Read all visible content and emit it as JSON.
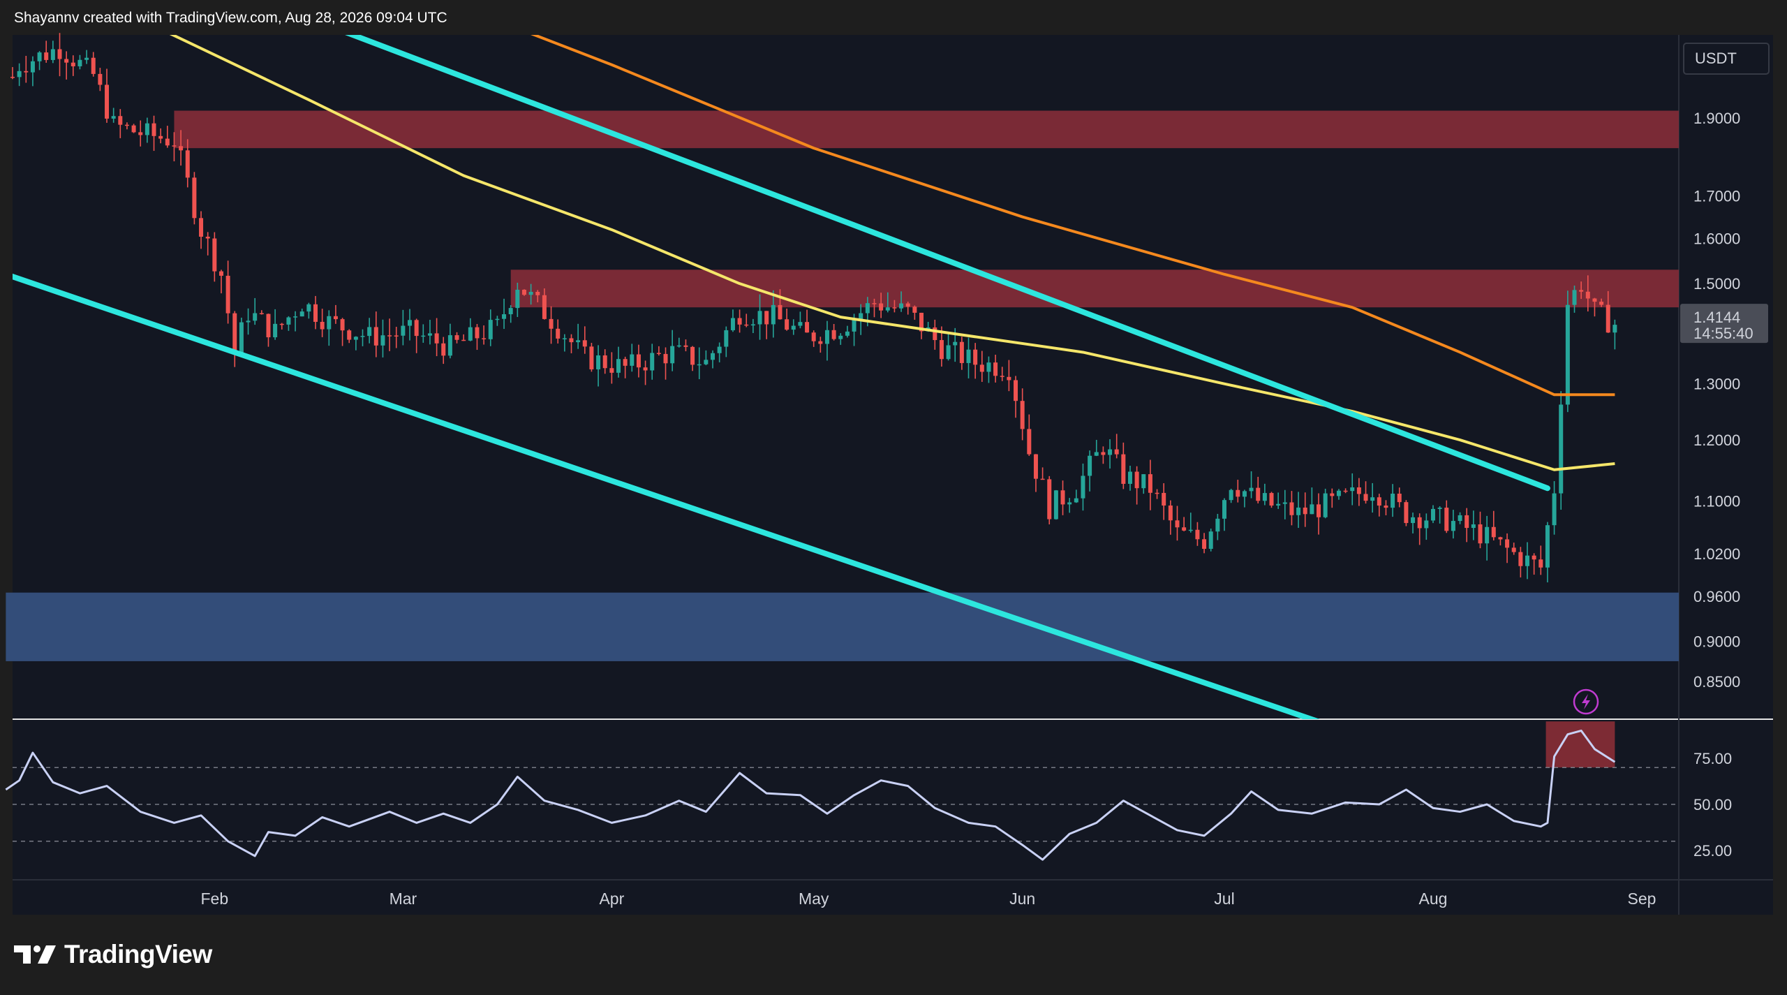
{
  "header": {
    "attribution": "Shayannv created with TradingView.com, Aug 28, 2026 09:04 UTC"
  },
  "brand": {
    "name": "TradingView",
    "logo_icon": "tradingview-logo-icon"
  },
  "colors": {
    "background": "#1e1e1e",
    "pane": "#131722",
    "grid": "#1c2030",
    "bull": "#26a69a",
    "bear": "#ef5350",
    "channel": "#2de6de",
    "ma_fast": "#f5e66a",
    "ma_slow": "#f5891e",
    "supply_zone": "#7f2b38",
    "demand_zone": "#35507e",
    "rsi_line": "#c9d1f5",
    "rsi_highlight": "#7d2b34"
  },
  "price_axis": {
    "currency": "USDT",
    "labels": [
      "1.9000",
      "1.7000",
      "1.6000",
      "1.5000",
      "1.3000",
      "1.2000",
      "1.1000",
      "1.0200",
      "0.9600",
      "0.9000",
      "0.8500"
    ],
    "current_price": "1.4144",
    "countdown": "14:55:40"
  },
  "rsi_axis": {
    "labels": [
      "75.00",
      "50.00",
      "25.00"
    ]
  },
  "time_axis": {
    "labels": [
      "Feb",
      "Mar",
      "Apr",
      "May",
      "Jun",
      "Jul",
      "Aug",
      "Sep"
    ]
  },
  "chart_data": [
    {
      "type": "candlestick",
      "scale": "log",
      "ylim": [
        0.8,
        2.2
      ],
      "quote": "USDT",
      "x_ticks": [
        "Feb",
        "Mar",
        "Apr",
        "May",
        "Jun",
        "Jul",
        "Aug",
        "Sep"
      ],
      "y_ticks": [
        1.9,
        1.7,
        1.6,
        1.5,
        1.3,
        1.2,
        1.1,
        1.02,
        0.96,
        0.9,
        0.85
      ],
      "last_price": 1.4144,
      "grid": false,
      "close_path": [
        {
          "date": "2026-01-01",
          "price": 1.98
        },
        {
          "date": "2026-01-03",
          "price": 2.05
        },
        {
          "date": "2026-01-09",
          "price": 2.1
        },
        {
          "date": "2026-01-14",
          "price": 2.02
        },
        {
          "date": "2026-01-17",
          "price": 1.88
        },
        {
          "date": "2026-01-21",
          "price": 1.86
        },
        {
          "date": "2026-01-26",
          "price": 1.84
        },
        {
          "date": "2026-01-30",
          "price": 1.62
        },
        {
          "date": "2026-02-02",
          "price": 1.52
        },
        {
          "date": "2026-02-04",
          "price": 1.36
        },
        {
          "date": "2026-02-06",
          "price": 1.44
        },
        {
          "date": "2026-02-10",
          "price": 1.4
        },
        {
          "date": "2026-02-14",
          "price": 1.46
        },
        {
          "date": "2026-02-18",
          "price": 1.42
        },
        {
          "date": "2026-02-24",
          "price": 1.39
        },
        {
          "date": "2026-03-02",
          "price": 1.4
        },
        {
          "date": "2026-03-08",
          "price": 1.37
        },
        {
          "date": "2026-03-15",
          "price": 1.41
        },
        {
          "date": "2026-03-18",
          "price": 1.5
        },
        {
          "date": "2026-03-22",
          "price": 1.44
        },
        {
          "date": "2026-03-28",
          "price": 1.35
        },
        {
          "date": "2026-04-03",
          "price": 1.33
        },
        {
          "date": "2026-04-10",
          "price": 1.36
        },
        {
          "date": "2026-04-15",
          "price": 1.34
        },
        {
          "date": "2026-04-20",
          "price": 1.44
        },
        {
          "date": "2026-04-25",
          "price": 1.43
        },
        {
          "date": "2026-04-30",
          "price": 1.39
        },
        {
          "date": "2026-05-05",
          "price": 1.41
        },
        {
          "date": "2026-05-10",
          "price": 1.46
        },
        {
          "date": "2026-05-15",
          "price": 1.44
        },
        {
          "date": "2026-05-20",
          "price": 1.37
        },
        {
          "date": "2026-05-25",
          "price": 1.34
        },
        {
          "date": "2026-05-30",
          "price": 1.33
        },
        {
          "date": "2026-06-02",
          "price": 1.18
        },
        {
          "date": "2026-06-05",
          "price": 1.09
        },
        {
          "date": "2026-06-09",
          "price": 1.12
        },
        {
          "date": "2026-06-13",
          "price": 1.19
        },
        {
          "date": "2026-06-16",
          "price": 1.14
        },
        {
          "date": "2026-06-20",
          "price": 1.12
        },
        {
          "date": "2026-06-24",
          "price": 1.05
        },
        {
          "date": "2026-06-28",
          "price": 1.04
        },
        {
          "date": "2026-07-02",
          "price": 1.13
        },
        {
          "date": "2026-07-06",
          "price": 1.1
        },
        {
          "date": "2026-07-12",
          "price": 1.08
        },
        {
          "date": "2026-07-18",
          "price": 1.1
        },
        {
          "date": "2026-07-23",
          "price": 1.12
        },
        {
          "date": "2026-07-28",
          "price": 1.08
        },
        {
          "date": "2026-08-03",
          "price": 1.07
        },
        {
          "date": "2026-08-08",
          "price": 1.05
        },
        {
          "date": "2026-08-13",
          "price": 1.02
        },
        {
          "date": "2026-08-17",
          "price": 1.0
        },
        {
          "date": "2026-08-19",
          "price": 1.12
        },
        {
          "date": "2026-08-20",
          "price": 1.28
        },
        {
          "date": "2026-08-21",
          "price": 1.46
        },
        {
          "date": "2026-08-23",
          "price": 1.5
        },
        {
          "date": "2026-08-25",
          "price": 1.44
        },
        {
          "date": "2026-08-28",
          "price": 1.4144
        }
      ],
      "moving_averages": [
        {
          "color": "yellow",
          "points": [
            {
              "date": "2026-01-10",
              "price": 2.3
            },
            {
              "date": "2026-02-15",
              "price": 1.95
            },
            {
              "date": "2026-03-10",
              "price": 1.75
            },
            {
              "date": "2026-04-01",
              "price": 1.62
            },
            {
              "date": "2026-04-20",
              "price": 1.5
            },
            {
              "date": "2026-05-05",
              "price": 1.43
            },
            {
              "date": "2026-05-20",
              "price": 1.4
            },
            {
              "date": "2026-06-10",
              "price": 1.36
            },
            {
              "date": "2026-07-01",
              "price": 1.3
            },
            {
              "date": "2026-07-20",
              "price": 1.25
            },
            {
              "date": "2026-08-05",
              "price": 1.2
            },
            {
              "date": "2026-08-19",
              "price": 1.15
            },
            {
              "date": "2026-08-28",
              "price": 1.16
            }
          ]
        },
        {
          "color": "orange",
          "points": [
            {
              "date": "2026-03-01",
              "price": 2.3
            },
            {
              "date": "2026-04-01",
              "price": 2.05
            },
            {
              "date": "2026-05-01",
              "price": 1.82
            },
            {
              "date": "2026-06-01",
              "price": 1.65
            },
            {
              "date": "2026-07-01",
              "price": 1.52
            },
            {
              "date": "2026-07-20",
              "price": 1.45
            },
            {
              "date": "2026-08-05",
              "price": 1.36
            },
            {
              "date": "2026-08-19",
              "price": 1.28
            },
            {
              "date": "2026-08-28",
              "price": 1.28
            }
          ]
        }
      ],
      "trendlines": [
        {
          "name": "channel-upper",
          "from": {
            "date": "2026-01-21",
            "price": 2.4
          },
          "to": {
            "date": "2026-08-18",
            "price": 1.12
          }
        },
        {
          "name": "channel-lower",
          "from": {
            "date": "2026-01-01",
            "price": 1.52
          },
          "to": {
            "date": "2026-07-16",
            "price": 0.8
          }
        }
      ],
      "zones": [
        {
          "kind": "supply",
          "from_date": "2026-01-26",
          "price_low": 1.82,
          "price_high": 1.92
        },
        {
          "kind": "supply",
          "from_date": "2026-03-17",
          "price_low": 1.45,
          "price_high": 1.53
        },
        {
          "kind": "demand",
          "from_date": "2026-01-01",
          "price_low": 0.875,
          "price_high": 0.965
        }
      ]
    },
    {
      "type": "line",
      "indicator": "RSI",
      "ylim": [
        0,
        100
      ],
      "y_ticks": [
        75,
        50,
        25
      ],
      "reference_lines": [
        70,
        50,
        30
      ],
      "overbought_highlight": {
        "from_date": "2026-08-19",
        "to_date": "2026-08-28",
        "value_low": 70,
        "value_high": 95
      },
      "points": [
        {
          "date": "2026-01-01",
          "value": 58
        },
        {
          "date": "2026-01-03",
          "value": 63
        },
        {
          "date": "2026-01-05",
          "value": 78
        },
        {
          "date": "2026-01-08",
          "value": 62
        },
        {
          "date": "2026-01-12",
          "value": 56
        },
        {
          "date": "2026-01-16",
          "value": 60
        },
        {
          "date": "2026-01-21",
          "value": 46
        },
        {
          "date": "2026-01-26",
          "value": 40
        },
        {
          "date": "2026-01-30",
          "value": 44
        },
        {
          "date": "2026-02-03",
          "value": 30
        },
        {
          "date": "2026-02-07",
          "value": 22
        },
        {
          "date": "2026-02-09",
          "value": 35
        },
        {
          "date": "2026-02-13",
          "value": 33
        },
        {
          "date": "2026-02-17",
          "value": 43
        },
        {
          "date": "2026-02-21",
          "value": 38
        },
        {
          "date": "2026-02-27",
          "value": 46
        },
        {
          "date": "2026-03-03",
          "value": 40
        },
        {
          "date": "2026-03-07",
          "value": 45
        },
        {
          "date": "2026-03-11",
          "value": 40
        },
        {
          "date": "2026-03-15",
          "value": 50
        },
        {
          "date": "2026-03-18",
          "value": 65
        },
        {
          "date": "2026-03-22",
          "value": 52
        },
        {
          "date": "2026-03-27",
          "value": 47
        },
        {
          "date": "2026-04-01",
          "value": 40
        },
        {
          "date": "2026-04-06",
          "value": 44
        },
        {
          "date": "2026-04-11",
          "value": 52
        },
        {
          "date": "2026-04-15",
          "value": 46
        },
        {
          "date": "2026-04-20",
          "value": 67
        },
        {
          "date": "2026-04-24",
          "value": 56
        },
        {
          "date": "2026-04-29",
          "value": 55
        },
        {
          "date": "2026-05-03",
          "value": 45
        },
        {
          "date": "2026-05-07",
          "value": 55
        },
        {
          "date": "2026-05-11",
          "value": 63
        },
        {
          "date": "2026-05-15",
          "value": 60
        },
        {
          "date": "2026-05-19",
          "value": 48
        },
        {
          "date": "2026-05-24",
          "value": 40
        },
        {
          "date": "2026-05-28",
          "value": 38
        },
        {
          "date": "2026-06-01",
          "value": 28
        },
        {
          "date": "2026-06-04",
          "value": 20
        },
        {
          "date": "2026-06-08",
          "value": 34
        },
        {
          "date": "2026-06-12",
          "value": 40
        },
        {
          "date": "2026-06-16",
          "value": 52
        },
        {
          "date": "2026-06-20",
          "value": 44
        },
        {
          "date": "2026-06-24",
          "value": 36
        },
        {
          "date": "2026-06-28",
          "value": 33
        },
        {
          "date": "2026-07-02",
          "value": 45
        },
        {
          "date": "2026-07-05",
          "value": 57
        },
        {
          "date": "2026-07-09",
          "value": 47
        },
        {
          "date": "2026-07-14",
          "value": 45
        },
        {
          "date": "2026-07-19",
          "value": 51
        },
        {
          "date": "2026-07-24",
          "value": 50
        },
        {
          "date": "2026-07-28",
          "value": 58
        },
        {
          "date": "2026-08-01",
          "value": 48
        },
        {
          "date": "2026-08-05",
          "value": 46
        },
        {
          "date": "2026-08-09",
          "value": 50
        },
        {
          "date": "2026-08-13",
          "value": 41
        },
        {
          "date": "2026-08-17",
          "value": 38
        },
        {
          "date": "2026-08-18",
          "value": 40
        },
        {
          "date": "2026-08-19",
          "value": 76
        },
        {
          "date": "2026-08-21",
          "value": 88
        },
        {
          "date": "2026-08-23",
          "value": 90
        },
        {
          "date": "2026-08-25",
          "value": 80
        },
        {
          "date": "2026-08-28",
          "value": 73
        }
      ]
    }
  ]
}
